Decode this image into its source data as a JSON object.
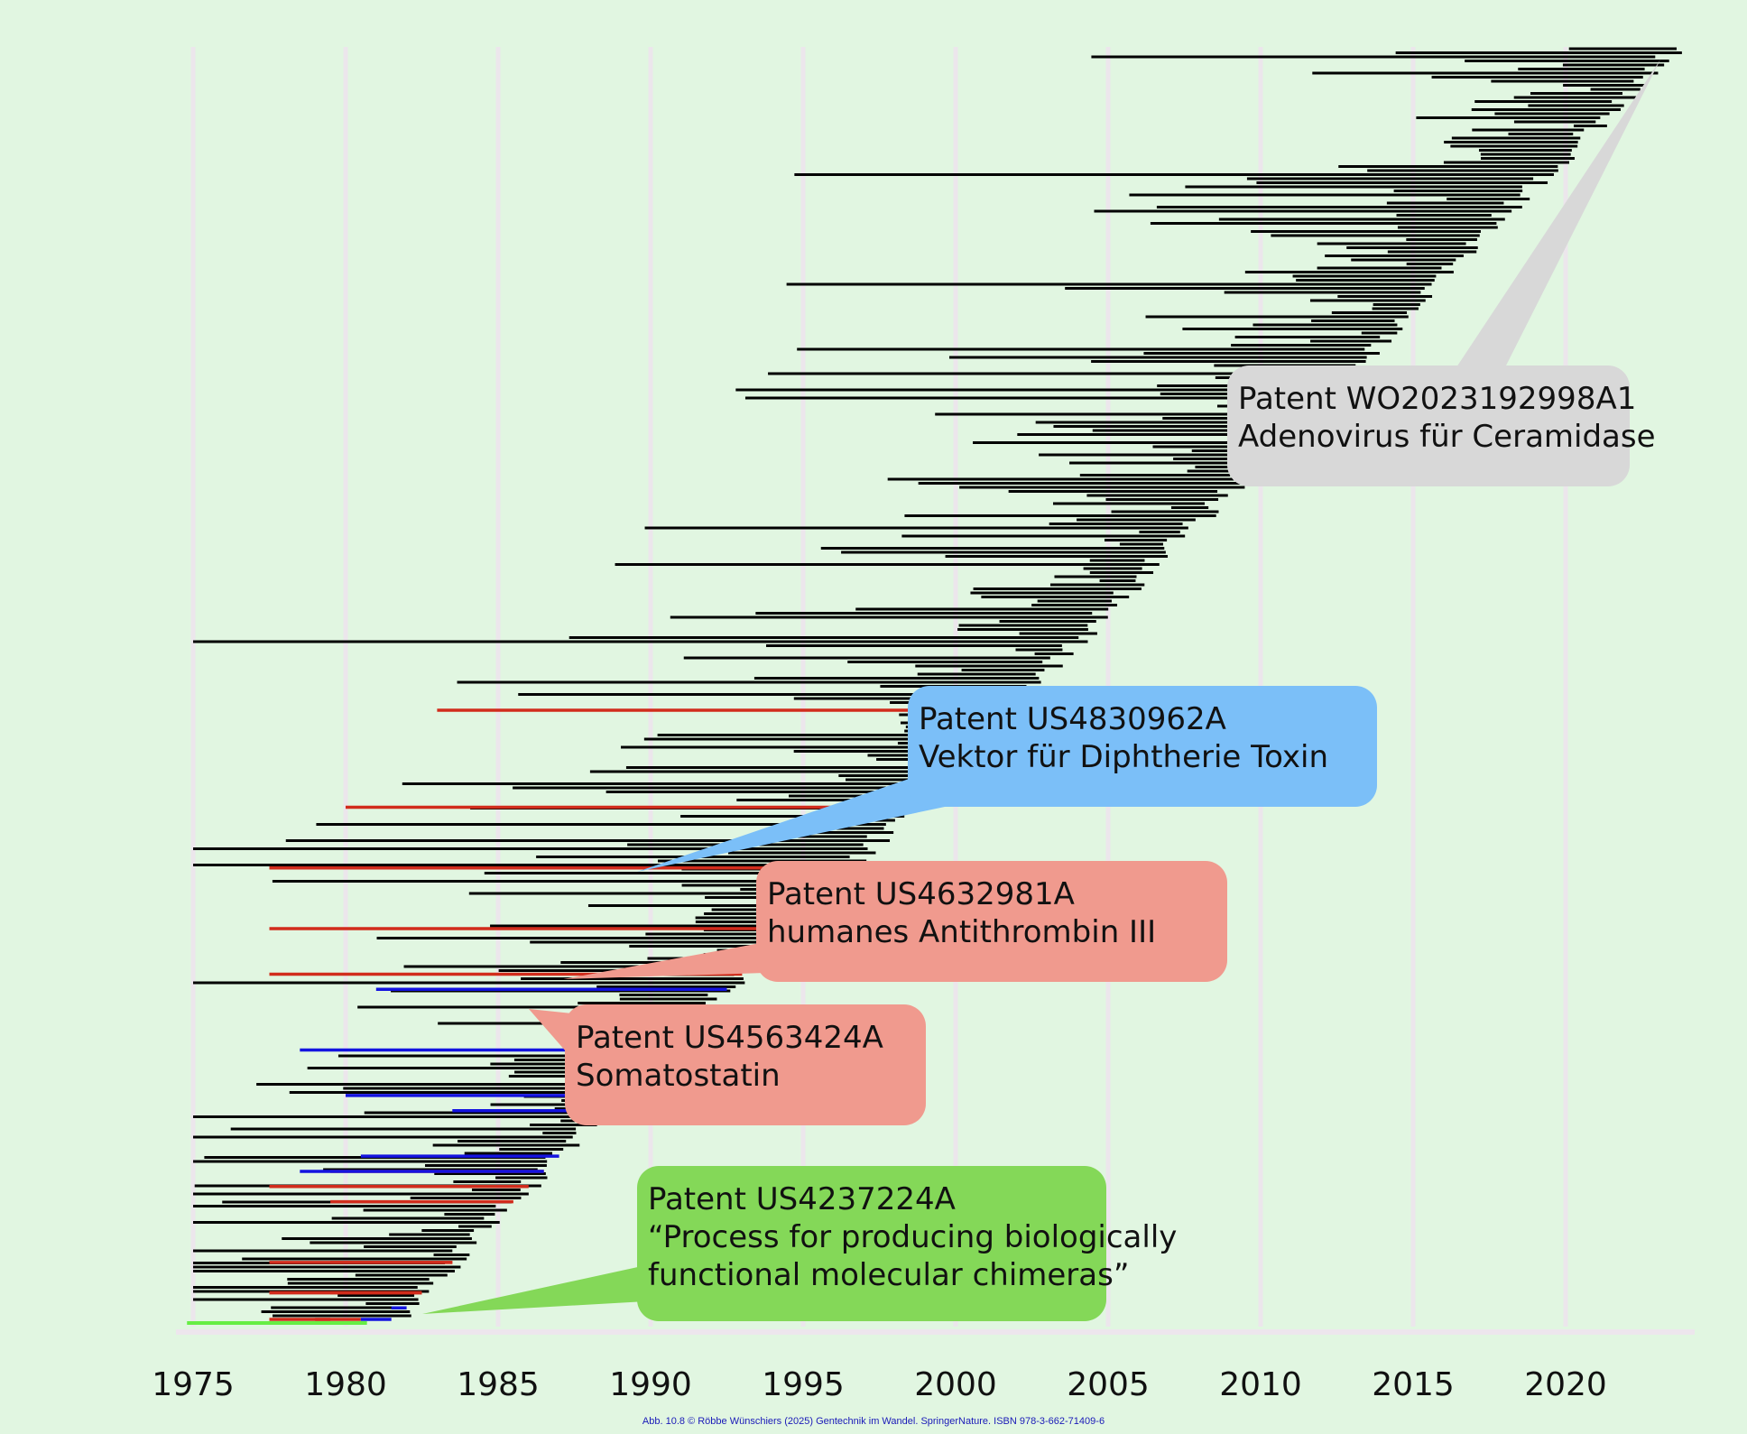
{
  "chart_data": {
    "type": "bar",
    "orientation": "horizontal",
    "description_of_marks": "citation timelines: each line spans a start and end year",
    "title": "",
    "xlabel": "",
    "ylabel": "",
    "xlim": [
      1974.2,
      2024.5
    ],
    "x_ticks": [
      1975,
      1980,
      1985,
      1990,
      1995,
      2000,
      2005,
      2010,
      2015,
      2020
    ],
    "x_tick_labels": [
      "1975",
      "1980",
      "1985",
      "1990",
      "1995",
      "2000",
      "2005",
      "2010",
      "2015",
      "2020"
    ],
    "grid": "vertical",
    "colors": {
      "background": "#e1f6e1",
      "grid": "#ece6ec",
      "axis": "#ede6ed",
      "black_series": "#000000",
      "red_series": "#d12c1c",
      "blue_series": "#1414e0",
      "green_series": "#66ee44"
    },
    "series": [
      {
        "color": "red",
        "spans": [
          [
            1983.0,
            2001.7
          ],
          [
            1980.0,
            1998.5
          ],
          [
            1977.5,
            1996.5
          ],
          [
            1977.5,
            1994.5
          ],
          [
            1977.5,
            1993.0
          ],
          [
            1977.5,
            1983.5
          ],
          [
            1977.5,
            1986.0
          ],
          [
            1979.5,
            1986.5
          ],
          [
            1979.5,
            1985.5
          ],
          [
            1979.5,
            1983.5
          ],
          [
            1977.5,
            1982.5
          ],
          [
            1977.5,
            1982.5
          ],
          [
            1979.5,
            1982.5
          ],
          [
            1977.5,
            1979.5
          ],
          [
            1979.0,
            1980.5
          ]
        ]
      },
      {
        "color": "blue",
        "spans": [
          [
            1981.0,
            1992.5
          ],
          [
            1978.5,
            1990.5
          ],
          [
            1980.0,
            1989.0
          ],
          [
            1983.5,
            1988.5
          ],
          [
            1980.5,
            1987.0
          ],
          [
            1978.5,
            1986.5
          ],
          [
            1981.5,
            1982.0
          ],
          [
            1980.5,
            1981.5
          ]
        ]
      },
      {
        "color": "green",
        "spans": [
          [
            1974.8,
            1980.7
          ]
        ]
      }
    ],
    "annotations": [
      {
        "line1": "Patent WO2023192998A1",
        "line2": "Adenovirus für Ceramidase",
        "fill": "#d8d8d8"
      },
      {
        "line1": "Patent US4830962A",
        "line2": "Vektor für Diphtherie Toxin",
        "fill": "#7bbff8"
      },
      {
        "line1": "Patent US4632981A",
        "line2": "humanes Antithrombin III",
        "fill": "#f09a8e"
      },
      {
        "line1": "Patent US4563424A",
        "line2": "Somatostatin",
        "fill": "#f09a8e"
      },
      {
        "line1": "Patent US4237224A",
        "line2": "“Process for producing biologically",
        "line3": "functional molecular chimeras”",
        "fill": "#84d858"
      }
    ]
  },
  "caption": "Abb. 10.8 © Röbbe Wünschiers (2025) Gentechnik im Wandel. SpringerNature. ISBN 978-3-662-71409-6"
}
